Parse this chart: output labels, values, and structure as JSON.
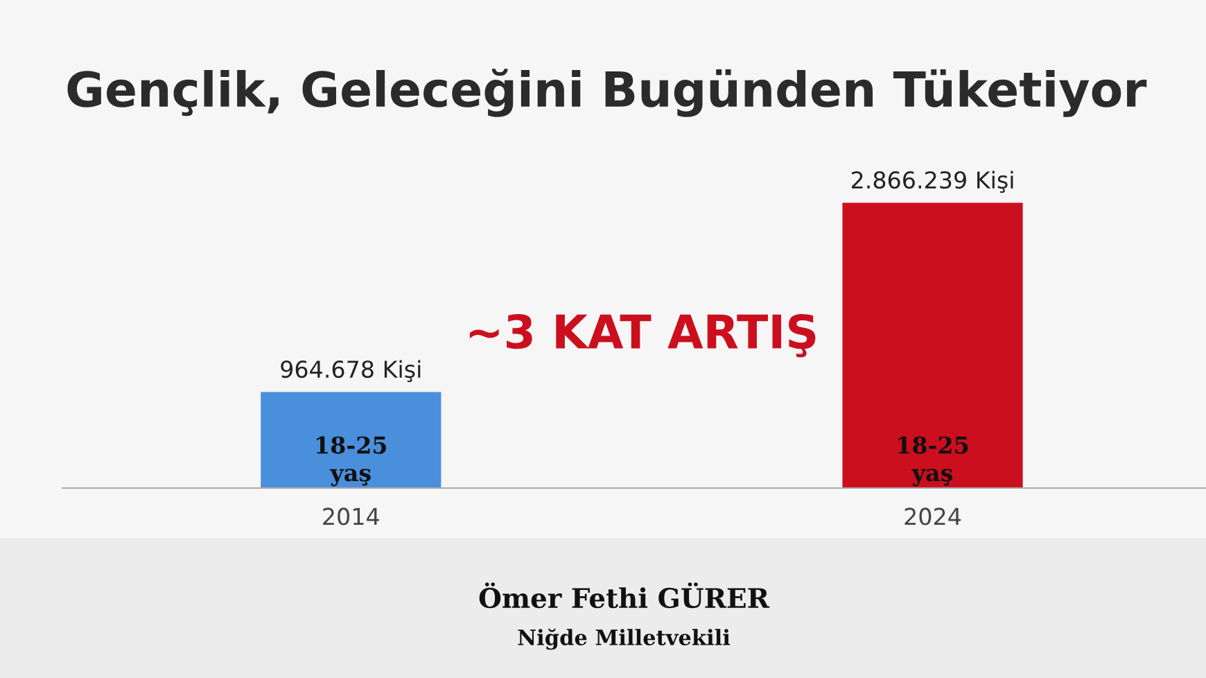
{
  "chart_data": {
    "type": "bar",
    "title": "Gençlik, Geleceğini Bugünden Tüketiyor",
    "categories": [
      "2014",
      "2024"
    ],
    "values": [
      964678,
      2866239
    ],
    "colors": [
      "#4a8fdc",
      "#cc0f1e"
    ],
    "value_labels": [
      "964.678 Kişi",
      "2.866.239 Kişi"
    ],
    "annotations": [
      "18-25\nyaş",
      "18-25\nyaş",
      "~3 KAT ARTIŞ",
      "Ömer Fethi GÜRER",
      "Niğde Milletvekili"
    ],
    "grid": false,
    "legend": false
  }
}
